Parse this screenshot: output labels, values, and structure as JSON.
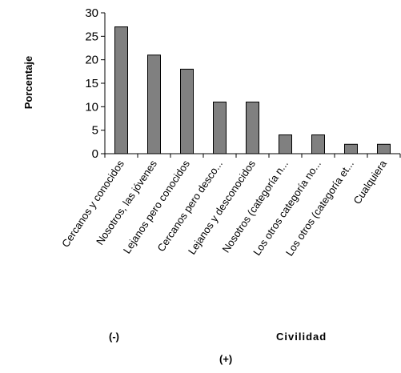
{
  "chart_data": {
    "type": "bar",
    "title": "",
    "ylabel": "Porcentaje",
    "xlabel": "Civilidad",
    "annotations": [
      "(-)",
      "(+)"
    ],
    "categories": [
      "Cercanos y conocidos",
      "Nosotros, las jóvenes",
      "Lejanos pero conocidos",
      "Cercanos pero desco...",
      "Lejanos y desconocidos",
      "Nosotros (categoría n...",
      "Los otros categoría no...",
      "Los otros (categoría et...",
      "Cualquiera"
    ],
    "values": [
      27,
      21,
      18,
      11,
      11,
      4,
      4,
      2,
      2
    ],
    "ylim": [
      0,
      30
    ],
    "yticks": [
      "0",
      "5",
      "10",
      "15",
      "20",
      "25",
      "30"
    ],
    "grid": false,
    "legend": "none",
    "bar_color": "#808080",
    "bar_edge_color": "#000000"
  }
}
